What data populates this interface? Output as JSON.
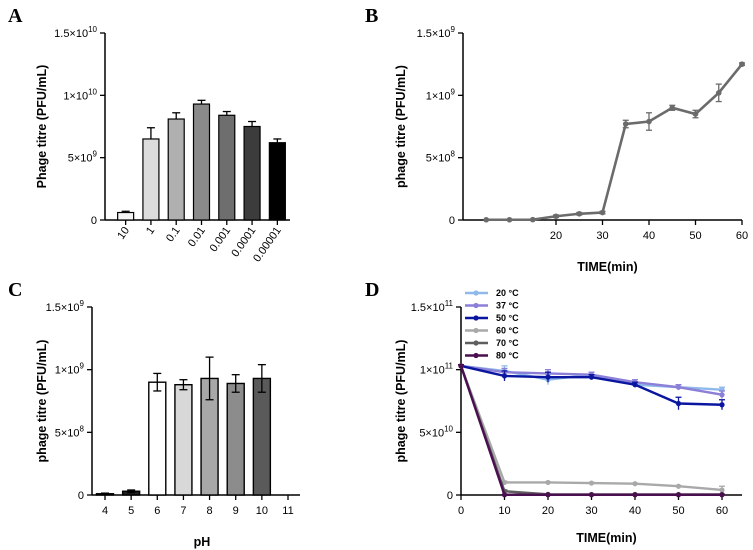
{
  "figure": {
    "panels": [
      "A",
      "B",
      "C",
      "D"
    ]
  },
  "chart_data": [
    {
      "panel": "A",
      "type": "bar",
      "title": "",
      "xlabel": "",
      "ylabel": "Phage titre (PFU/mL)",
      "categories": [
        "10",
        "1",
        "0.1",
        "0.01",
        "0.001",
        "0.0001",
        "0.00001"
      ],
      "values": [
        600000000.0,
        6500000000.0,
        8100000000.0,
        9300000000.0,
        8400000000.0,
        7500000000.0,
        6200000000.0
      ],
      "errors": [
        100000000.0,
        900000000.0,
        500000000.0,
        300000000.0,
        300000000.0,
        400000000.0,
        300000000.0
      ],
      "colors": [
        "#f4f4f4",
        "#dcdcdc",
        "#b0b0b0",
        "#8a8a8a",
        "#6e6e6e",
        "#3c3c3c",
        "#000000"
      ],
      "ylim": [
        0,
        15000000000.0
      ],
      "yticks": [
        0,
        5000000000.0,
        10000000000.0,
        15000000000.0
      ],
      "ytick_labels": [
        {
          "base": "0",
          "exp": ""
        },
        {
          "base": "5×10",
          "exp": "9"
        },
        {
          "base": "1×10",
          "exp": "10"
        },
        {
          "base": "1.5×10",
          "exp": "10"
        }
      ]
    },
    {
      "panel": "B",
      "type": "line",
      "title": "",
      "xlabel": "TIME(min)",
      "ylabel": "phage titre (PFU/mL)",
      "x": [
        5,
        10,
        15,
        20,
        25,
        30,
        35,
        40,
        45,
        50,
        55,
        60
      ],
      "values": [
        2000000.0,
        2000000.0,
        3000000.0,
        30000000.0,
        50000000.0,
        60000000.0,
        770000000.0,
        790000000.0,
        900000000.0,
        850000000.0,
        1020000000.0,
        1250000000.0
      ],
      "errors": [
        0,
        0,
        0,
        10000000.0,
        10000000.0,
        10000000.0,
        30000000.0,
        70000000.0,
        20000000.0,
        30000000.0,
        70000000.0,
        10000000.0
      ],
      "color": "#6b6b6b",
      "xlim": [
        0,
        60
      ],
      "xticks": [
        20,
        30,
        40,
        50,
        60
      ],
      "ylim": [
        0,
        1500000000.0
      ],
      "yticks": [
        0,
        500000000.0,
        1000000000.0,
        1500000000.0
      ],
      "ytick_labels": [
        {
          "base": "0",
          "exp": ""
        },
        {
          "base": "5×10",
          "exp": "8"
        },
        {
          "base": "1×10",
          "exp": "9"
        },
        {
          "base": "1.5×10",
          "exp": "9"
        }
      ]
    },
    {
      "panel": "C",
      "type": "bar",
      "title": "",
      "xlabel": "pH",
      "ylabel": "phage titre (PFU/mL)",
      "x": [
        4,
        5,
        6,
        7,
        8,
        9,
        10
      ],
      "values": [
        10000000.0,
        30000000.0,
        900000000.0,
        880000000.0,
        930000000.0,
        890000000.0,
        930000000.0
      ],
      "errors": [
        5000000.0,
        10000000.0,
        70000000.0,
        40000000.0,
        170000000.0,
        70000000.0,
        110000000.0
      ],
      "colors": [
        "#1e1e1e",
        "#1e1e1e",
        "#ffffff",
        "#d8d8d8",
        "#a8a8a8",
        "#8c8c8c",
        "#5a5a5a"
      ],
      "xlim": [
        4,
        11
      ],
      "xticks": [
        4,
        5,
        6,
        7,
        8,
        9,
        10,
        11
      ],
      "ylim": [
        0,
        1500000000.0
      ],
      "yticks": [
        0,
        500000000.0,
        1000000000.0,
        1500000000.0
      ],
      "ytick_labels": [
        {
          "base": "0",
          "exp": ""
        },
        {
          "base": "5×10",
          "exp": "8"
        },
        {
          "base": "1×10",
          "exp": "9"
        },
        {
          "base": "1.5×10",
          "exp": "9"
        }
      ]
    },
    {
      "panel": "D",
      "type": "line",
      "title": "",
      "xlabel": "TIME(min)",
      "ylabel": "phage titre (PFU/mL)",
      "x": [
        0,
        10,
        20,
        30,
        40,
        50,
        60
      ],
      "series": [
        {
          "name": "20 °C",
          "color": "#8fb9ea",
          "values": [
            103000000000.0,
            99000000000.0,
            92000000000.0,
            96000000000.0,
            88000000000.0,
            86000000000.0,
            84000000000.0
          ],
          "errors": [
            1000000000.0,
            4000000000.0,
            4000000000.0,
            2000000000.0,
            2000000000.0,
            2000000000.0,
            2000000000.0
          ]
        },
        {
          "name": "37 °C",
          "color": "#8c7fd8",
          "values": [
            103000000000.0,
            98000000000.0,
            97000000000.0,
            96000000000.0,
            90000000000.0,
            86000000000.0,
            80000000000.0
          ],
          "errors": [
            1000000000.0,
            3000000000.0,
            3000000000.0,
            2000000000.0,
            2000000000.0,
            2000000000.0,
            3000000000.0
          ]
        },
        {
          "name": "50 °C",
          "color": "#0a16a0",
          "values": [
            103000000000.0,
            95000000000.0,
            94000000000.0,
            94000000000.0,
            88000000000.0,
            73000000000.0,
            72000000000.0
          ],
          "errors": [
            1000000000.0,
            4000000000.0,
            4000000000.0,
            2000000000.0,
            2000000000.0,
            5000000000.0,
            4000000000.0
          ]
        },
        {
          "name": "60 °C",
          "color": "#a9a9a9",
          "values": [
            103000000000.0,
            10000000000.0,
            10000000000.0,
            9500000000.0,
            9000000000.0,
            7000000000.0,
            4000000000.0
          ],
          "errors": [
            1000000000.0,
            1000000000.0,
            500000000.0,
            500000000.0,
            500000000.0,
            500000000.0,
            3000000000.0
          ]
        },
        {
          "name": "70 °C",
          "color": "#5e5e5e",
          "values": [
            103000000000.0,
            3000000000.0,
            500000000.0,
            400000000.0,
            400000000.0,
            400000000.0,
            400000000.0
          ],
          "errors": [
            1000000000.0,
            1000000000.0,
            200000000.0,
            200000000.0,
            200000000.0,
            200000000.0,
            200000000.0
          ]
        },
        {
          "name": "80 °C",
          "color": "#4a0f4f",
          "values": [
            103000000000.0,
            200000000.0,
            200000000.0,
            200000000.0,
            200000000.0,
            200000000.0,
            200000000.0
          ],
          "errors": [
            1000000000.0,
            100000000.0,
            100000000.0,
            100000000.0,
            100000000.0,
            100000000.0,
            100000000.0
          ]
        }
      ],
      "xlim": [
        0,
        60
      ],
      "xticks": [
        0,
        10,
        20,
        30,
        40,
        50,
        60
      ],
      "ylim": [
        0,
        150000000000.0
      ],
      "yticks": [
        0,
        50000000000.0,
        100000000000.0,
        150000000000.0
      ],
      "ytick_labels": [
        {
          "base": "0",
          "exp": ""
        },
        {
          "base": "5×10",
          "exp": "10"
        },
        {
          "base": "1×10",
          "exp": "11"
        },
        {
          "base": "1.5×10",
          "exp": "11"
        }
      ],
      "legend": "top-left"
    }
  ]
}
